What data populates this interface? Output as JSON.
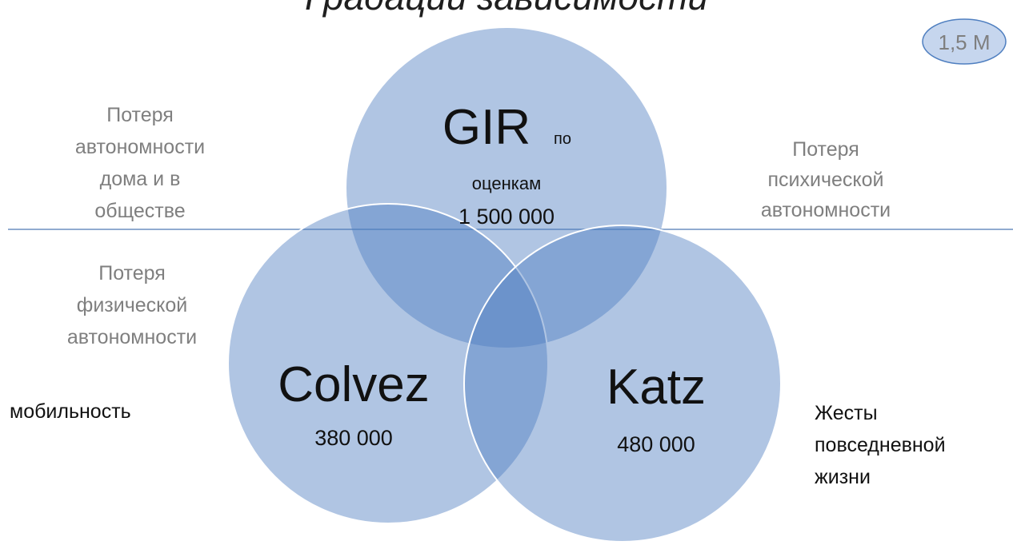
{
  "title": "Градации зависимости",
  "badge": "1,5 M",
  "circles": [
    {
      "label": "GIR",
      "note": "по",
      "sublabel": "оценкам",
      "value": "1 500 000"
    },
    {
      "label": "Colvez",
      "value": "380 000"
    },
    {
      "label": "Katz",
      "value": "480 000"
    }
  ],
  "side_labels": {
    "top_left": [
      "Потеря",
      "автономности",
      "дома и в",
      "обществе"
    ],
    "top_right": [
      "Потеря",
      "психической",
      "автономности"
    ],
    "middle_left": [
      "Потеря",
      "физической",
      "автономности"
    ],
    "left": [
      "мобильность"
    ],
    "right": [
      "Жесты",
      "повседневной",
      "жизни"
    ]
  }
}
